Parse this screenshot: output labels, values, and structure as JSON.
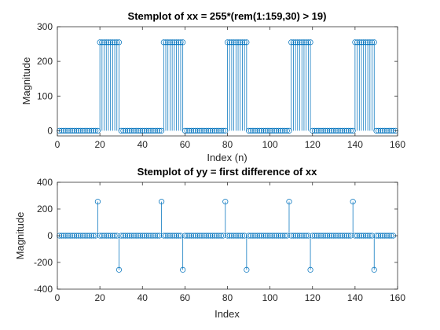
{
  "colors": {
    "stem": "#0072bd",
    "axes": "#262626",
    "background": "#ffffff"
  },
  "chart_data": [
    {
      "type": "stem",
      "title": "Stemplot of xx = 255*(rem(1:159,30) > 19)",
      "xlabel": "Index (n)",
      "ylabel": "Magnitude",
      "xlim": [
        0,
        160
      ],
      "ylim": [
        -15,
        300
      ],
      "xticks": [
        0,
        20,
        40,
        60,
        80,
        100,
        120,
        140,
        160
      ],
      "yticks": [
        0,
        100,
        200,
        300
      ],
      "xtick_labels": [
        "0",
        "20",
        "40",
        "60",
        "80",
        "100",
        "120",
        "140",
        "160"
      ],
      "ytick_labels": [
        "0",
        "100",
        "200",
        "300"
      ],
      "grid": false,
      "legend": "none",
      "x": [
        1,
        2,
        3,
        4,
        5,
        6,
        7,
        8,
        9,
        10,
        11,
        12,
        13,
        14,
        15,
        16,
        17,
        18,
        19,
        20,
        21,
        22,
        23,
        24,
        25,
        26,
        27,
        28,
        29,
        30,
        31,
        32,
        33,
        34,
        35,
        36,
        37,
        38,
        39,
        40,
        41,
        42,
        43,
        44,
        45,
        46,
        47,
        48,
        49,
        50,
        51,
        52,
        53,
        54,
        55,
        56,
        57,
        58,
        59,
        60,
        61,
        62,
        63,
        64,
        65,
        66,
        67,
        68,
        69,
        70,
        71,
        72,
        73,
        74,
        75,
        76,
        77,
        78,
        79,
        80,
        81,
        82,
        83,
        84,
        85,
        86,
        87,
        88,
        89,
        90,
        91,
        92,
        93,
        94,
        95,
        96,
        97,
        98,
        99,
        100,
        101,
        102,
        103,
        104,
        105,
        106,
        107,
        108,
        109,
        110,
        111,
        112,
        113,
        114,
        115,
        116,
        117,
        118,
        119,
        120,
        121,
        122,
        123,
        124,
        125,
        126,
        127,
        128,
        129,
        130,
        131,
        132,
        133,
        134,
        135,
        136,
        137,
        138,
        139,
        140,
        141,
        142,
        143,
        144,
        145,
        146,
        147,
        148,
        149,
        150,
        151,
        152,
        153,
        154,
        155,
        156,
        157,
        158,
        159
      ],
      "values": [
        0,
        0,
        0,
        0,
        0,
        0,
        0,
        0,
        0,
        0,
        0,
        0,
        0,
        0,
        0,
        0,
        0,
        0,
        0,
        255,
        255,
        255,
        255,
        255,
        255,
        255,
        255,
        255,
        255,
        0,
        0,
        0,
        0,
        0,
        0,
        0,
        0,
        0,
        0,
        0,
        0,
        0,
        0,
        0,
        0,
        0,
        0,
        0,
        0,
        255,
        255,
        255,
        255,
        255,
        255,
        255,
        255,
        255,
        255,
        0,
        0,
        0,
        0,
        0,
        0,
        0,
        0,
        0,
        0,
        0,
        0,
        0,
        0,
        0,
        0,
        0,
        0,
        0,
        0,
        255,
        255,
        255,
        255,
        255,
        255,
        255,
        255,
        255,
        255,
        0,
        0,
        0,
        0,
        0,
        0,
        0,
        0,
        0,
        0,
        0,
        0,
        0,
        0,
        0,
        0,
        0,
        0,
        0,
        0,
        255,
        255,
        255,
        255,
        255,
        255,
        255,
        255,
        255,
        255,
        0,
        0,
        0,
        0,
        0,
        0,
        0,
        0,
        0,
        0,
        0,
        0,
        0,
        0,
        0,
        0,
        0,
        0,
        0,
        0,
        255,
        255,
        255,
        255,
        255,
        255,
        255,
        255,
        255,
        255,
        0,
        0,
        0,
        0,
        0,
        0,
        0,
        0,
        0,
        0
      ]
    },
    {
      "type": "stem",
      "title": "Stemplot of yy = first difference of xx",
      "xlabel": "Index",
      "ylabel": "Magnitude",
      "xlim": [
        0,
        160
      ],
      "ylim": [
        -400,
        400
      ],
      "xticks": [
        0,
        20,
        40,
        60,
        80,
        100,
        120,
        140,
        160
      ],
      "yticks": [
        -400,
        -200,
        0,
        200,
        400
      ],
      "xtick_labels": [
        "0",
        "20",
        "40",
        "60",
        "80",
        "100",
        "120",
        "140",
        "160"
      ],
      "ytick_labels": [
        "-400",
        "-200",
        "0",
        "200",
        "400"
      ],
      "grid": false,
      "legend": "none",
      "x": [
        1,
        2,
        3,
        4,
        5,
        6,
        7,
        8,
        9,
        10,
        11,
        12,
        13,
        14,
        15,
        16,
        17,
        18,
        19,
        20,
        21,
        22,
        23,
        24,
        25,
        26,
        27,
        28,
        29,
        30,
        31,
        32,
        33,
        34,
        35,
        36,
        37,
        38,
        39,
        40,
        41,
        42,
        43,
        44,
        45,
        46,
        47,
        48,
        49,
        50,
        51,
        52,
        53,
        54,
        55,
        56,
        57,
        58,
        59,
        60,
        61,
        62,
        63,
        64,
        65,
        66,
        67,
        68,
        69,
        70,
        71,
        72,
        73,
        74,
        75,
        76,
        77,
        78,
        79,
        80,
        81,
        82,
        83,
        84,
        85,
        86,
        87,
        88,
        89,
        90,
        91,
        92,
        93,
        94,
        95,
        96,
        97,
        98,
        99,
        100,
        101,
        102,
        103,
        104,
        105,
        106,
        107,
        108,
        109,
        110,
        111,
        112,
        113,
        114,
        115,
        116,
        117,
        118,
        119,
        120,
        121,
        122,
        123,
        124,
        125,
        126,
        127,
        128,
        129,
        130,
        131,
        132,
        133,
        134,
        135,
        136,
        137,
        138,
        139,
        140,
        141,
        142,
        143,
        144,
        145,
        146,
        147,
        148,
        149,
        150,
        151,
        152,
        153,
        154,
        155,
        156,
        157,
        158
      ],
      "values": [
        0,
        0,
        0,
        0,
        0,
        0,
        0,
        0,
        0,
        0,
        0,
        0,
        0,
        0,
        0,
        0,
        0,
        0,
        255,
        0,
        0,
        0,
        0,
        0,
        0,
        0,
        0,
        0,
        -255,
        0,
        0,
        0,
        0,
        0,
        0,
        0,
        0,
        0,
        0,
        0,
        0,
        0,
        0,
        0,
        0,
        0,
        0,
        0,
        255,
        0,
        0,
        0,
        0,
        0,
        0,
        0,
        0,
        0,
        -255,
        0,
        0,
        0,
        0,
        0,
        0,
        0,
        0,
        0,
        0,
        0,
        0,
        0,
        0,
        0,
        0,
        0,
        0,
        0,
        255,
        0,
        0,
        0,
        0,
        0,
        0,
        0,
        0,
        0,
        -255,
        0,
        0,
        0,
        0,
        0,
        0,
        0,
        0,
        0,
        0,
        0,
        0,
        0,
        0,
        0,
        0,
        0,
        0,
        0,
        255,
        0,
        0,
        0,
        0,
        0,
        0,
        0,
        0,
        0,
        -255,
        0,
        0,
        0,
        0,
        0,
        0,
        0,
        0,
        0,
        0,
        0,
        0,
        0,
        0,
        0,
        0,
        0,
        0,
        0,
        255,
        0,
        0,
        0,
        0,
        0,
        0,
        0,
        0,
        0,
        -255,
        0,
        0,
        0,
        0,
        0,
        0,
        0,
        0,
        0
      ]
    }
  ]
}
